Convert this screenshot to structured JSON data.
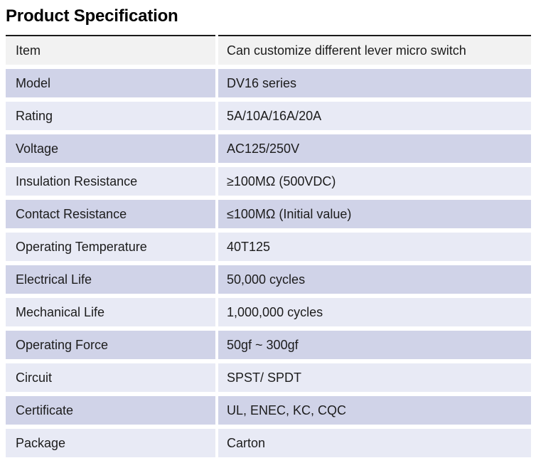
{
  "page": {
    "title": "Product Specification"
  },
  "colors": {
    "first_row_bg": "#f2f2f2",
    "alt_row_dark_bg": "#d0d3e8",
    "alt_row_light_bg": "#e8eaf5",
    "top_border": "#1b1b1b",
    "text": "#1c1c1c"
  },
  "table": {
    "rows": [
      {
        "label": "Item",
        "value": "Can customize different lever micro switch"
      },
      {
        "label": "Model",
        "value": "DV16 series"
      },
      {
        "label": "Rating",
        "value": "5A/10A/16A/20A"
      },
      {
        "label": "Voltage",
        "value": "AC125/250V"
      },
      {
        "label": "Insulation Resistance",
        "value": "≥100MΩ (500VDC)"
      },
      {
        "label": "Contact Resistance",
        "value": "≤100MΩ (Initial value)"
      },
      {
        "label": "Operating Temperature",
        "value": "40T125"
      },
      {
        "label": "Electrical Life",
        "value": "50,000 cycles"
      },
      {
        "label": "Mechanical Life",
        "value": "1,000,000 cycles"
      },
      {
        "label": "Operating Force",
        "value": "50gf ~ 300gf"
      },
      {
        "label": "Circuit",
        "value": "SPST/ SPDT"
      },
      {
        "label": "Certificate",
        "value": "UL, ENEC, KC, CQC"
      },
      {
        "label": "Package",
        "value": "Carton"
      }
    ]
  }
}
